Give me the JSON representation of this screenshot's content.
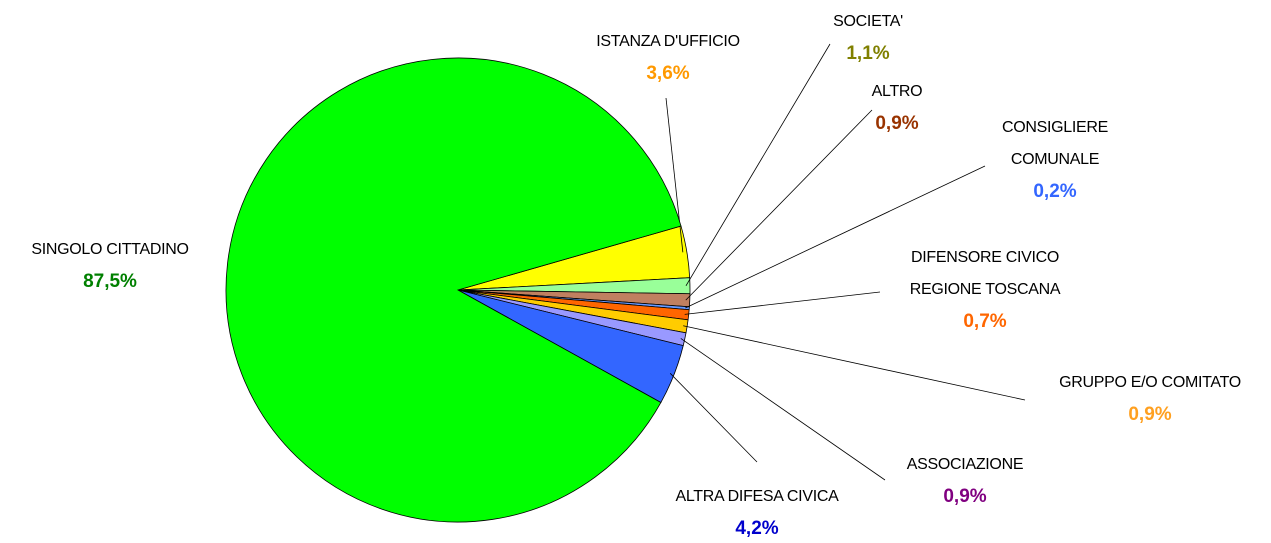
{
  "chart_data": {
    "type": "pie",
    "categories": [
      "ISTANZA D'UFFICIO",
      "SOCIETA'",
      "ALTRO",
      "CONSIGLIERE\nCOMUNALE",
      "DIFENSORE CIVICO\nREGIONE TOSCANA",
      "GRUPPO E/O COMITATO",
      "ASSOCIAZIONE",
      "ALTRA DIFESA CIVICA",
      "SINGOLO CITTADINO"
    ],
    "values": [
      3.6,
      1.1,
      0.9,
      0.2,
      0.7,
      0.9,
      0.9,
      4.2,
      87.5
    ],
    "value_labels": [
      "3,6%",
      "1,1%",
      "0,9%",
      "0,2%",
      "0,7%",
      "0,9%",
      "0,9%",
      "4,2%",
      "87,5%"
    ],
    "colors": [
      "#ffff00",
      "#99ff99",
      "#c08060",
      "#6699ff",
      "#ff6600",
      "#ffcc00",
      "#9999ff",
      "#3366ff",
      "#00ff00"
    ],
    "label_colors": [
      "#ff9900",
      "#808000",
      "#993300",
      "#3366ff",
      "#ff6600",
      "#ffa020",
      "#800080",
      "#0000cc",
      "#008000"
    ]
  }
}
